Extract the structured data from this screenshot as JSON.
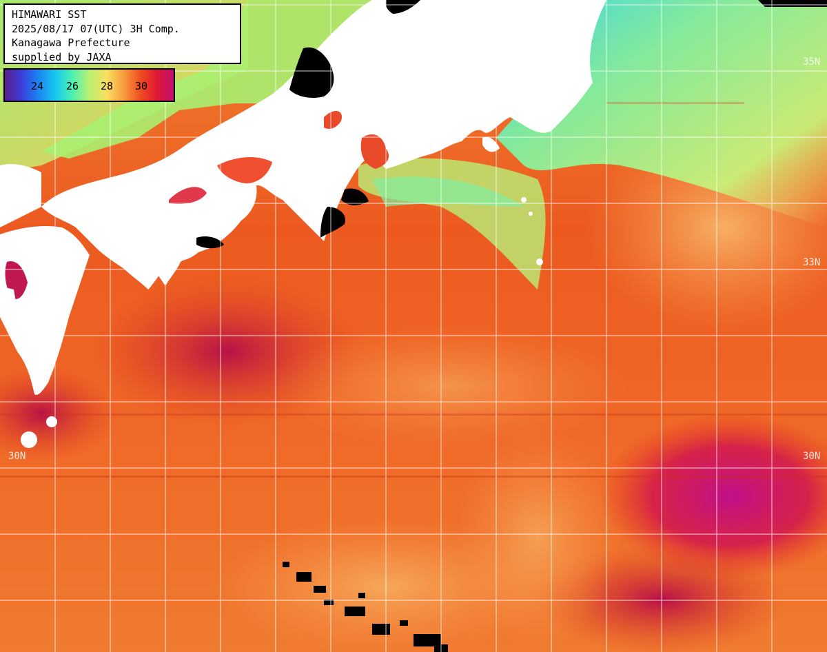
{
  "header": {
    "line1": "HIMAWARI SST",
    "line2": "2025/08/17 07(UTC) 3H Comp.",
    "line3": "Kanagawa Prefecture",
    "line4": "supplied by JAXA"
  },
  "legend": {
    "ticks": [
      "24",
      "26",
      "28",
      "30"
    ]
  },
  "lat_labels": {
    "n35_right": "35N",
    "n33_right": "33N",
    "n30_left": "30N",
    "n30_right": "30N"
  },
  "colors": {
    "land": "#ffffff",
    "cloud": "#000000",
    "warm": "#e8541c",
    "hot": "#c8102e",
    "hottest": "#b0108c",
    "cool": "#7ef0a0",
    "cooler": "#18c8f0",
    "grid": "#ffffff"
  }
}
